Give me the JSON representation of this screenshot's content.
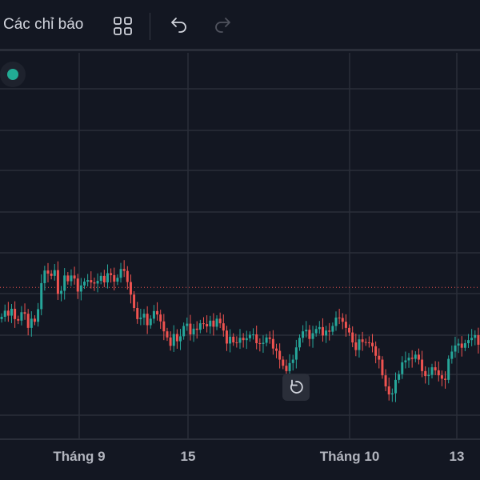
{
  "toolbar": {
    "indicators_label": "Các chỉ báo",
    "layout_icon": "grid-layout-icon",
    "undo_icon": "undo-icon",
    "redo_icon": "redo-icon"
  },
  "colors": {
    "background": "#131722",
    "grid": "#2a2e39",
    "up": "#26a69a",
    "down": "#ef5350",
    "price_line": "#ef5350",
    "status": "#22ab94"
  },
  "status_indicator": "green-status-dot",
  "reset_icon": "reset-chart-icon",
  "x_axis_labels": [
    "Tháng 9",
    "15",
    "Tháng 10",
    "13"
  ],
  "chart_data": {
    "type": "candlestick",
    "y_range": [
      0,
      100
    ],
    "grid": true,
    "last_price_line": 39.5,
    "closes": [
      31.8,
      33.4,
      32.1,
      33.9,
      31.2,
      30.8,
      33.0,
      32.6,
      28.9,
      31.3,
      30.5,
      33.8,
      40.6,
      43.9,
      43.1,
      42.5,
      44.0,
      37.8,
      38.6,
      42.6,
      41.1,
      42.6,
      41.8,
      38.4,
      40.0,
      41.0,
      41.4,
      40.8,
      40.5,
      41.2,
      42.5,
      40.8,
      43.2,
      42.7,
      41.0,
      42.0,
      44.3,
      43.8,
      40.9,
      37.6,
      34.1,
      31.2,
      31.6,
      32.6,
      29.6,
      31.3,
      33.3,
      32.4,
      30.6,
      28.0,
      26.4,
      24.2,
      27.3,
      25.4,
      26.7,
      29.4,
      30.0,
      27.2,
      28.7,
      28.4,
      30.1,
      29.9,
      29.3,
      30.8,
      29.2,
      31.3,
      30.1,
      28.2,
      24.8,
      26.6,
      25.1,
      25.0,
      26.3,
      25.7,
      26.2,
      27.1,
      27.2,
      24.9,
      24.7,
      25.0,
      26.4,
      26.0,
      23.5,
      22.9,
      20.6,
      19.0,
      17.6,
      19.7,
      20.6,
      23.8,
      26.3,
      28.0,
      28.4,
      26.0,
      27.5,
      28.6,
      29.1,
      26.9,
      28.2,
      27.9,
      29.4,
      31.6,
      31.5,
      30.5,
      28.9,
      27.7,
      25.1,
      23.1,
      25.9,
      25.2,
      25.1,
      25.0,
      24.1,
      21.6,
      20.6,
      16.5,
      13.6,
      11.5,
      11.8,
      15.3,
      16.8,
      19.9,
      20.4,
      21.1,
      20.8,
      21.9,
      20.6,
      17.6,
      16.3,
      16.6,
      18.6,
      17.8,
      16.5,
      15.6,
      15.3,
      20.8,
      22.7,
      24.3,
      24.8,
      23.7,
      24.9,
      25.7,
      26.3,
      27.0,
      24.5
    ]
  }
}
